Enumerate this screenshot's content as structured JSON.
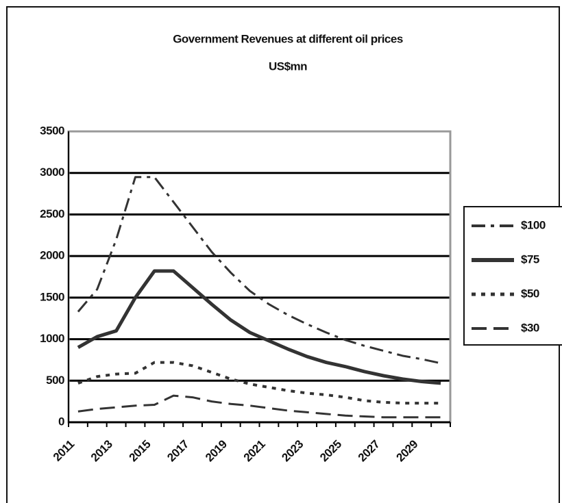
{
  "chart_data": {
    "type": "line",
    "title": "Government Revenues at different oil prices",
    "subtitle": "US$mn",
    "categories": [
      "2011",
      null,
      "2013",
      null,
      "2015",
      null,
      "2017",
      null,
      "2019",
      null,
      "2021",
      null,
      "2023",
      null,
      "2025",
      null,
      "2027",
      null,
      "2029",
      null
    ],
    "series": [
      {
        "name": "$100",
        "color": "#333333",
        "dash": "dashdot",
        "values": [
          1330,
          1600,
          2200,
          2950,
          2950,
          2650,
          2350,
          2050,
          1800,
          1580,
          1420,
          1290,
          1180,
          1080,
          990,
          920,
          860,
          800,
          760,
          710
        ]
      },
      {
        "name": "$75",
        "color": "#333333",
        "dash": "solid",
        "values": [
          900,
          1030,
          1100,
          1500,
          1820,
          1820,
          1620,
          1420,
          1230,
          1080,
          980,
          880,
          790,
          720,
          670,
          610,
          560,
          520,
          490,
          470
        ]
      },
      {
        "name": "$50",
        "color": "#333333",
        "dash": "dotted",
        "values": [
          470,
          550,
          580,
          590,
          720,
          720,
          680,
          600,
          520,
          460,
          420,
          380,
          350,
          330,
          300,
          260,
          240,
          230,
          230,
          230
        ]
      },
      {
        "name": "$30",
        "color": "#333333",
        "dash": "dashed",
        "values": [
          130,
          160,
          180,
          200,
          210,
          320,
          300,
          250,
          220,
          200,
          170,
          140,
          120,
          100,
          80,
          70,
          60,
          60,
          60,
          60
        ]
      }
    ],
    "ylim": [
      0,
      3500
    ],
    "yticks": [
      0,
      500,
      1000,
      1500,
      2000,
      2500,
      3000,
      3500
    ],
    "grid": true,
    "legend": "right"
  }
}
